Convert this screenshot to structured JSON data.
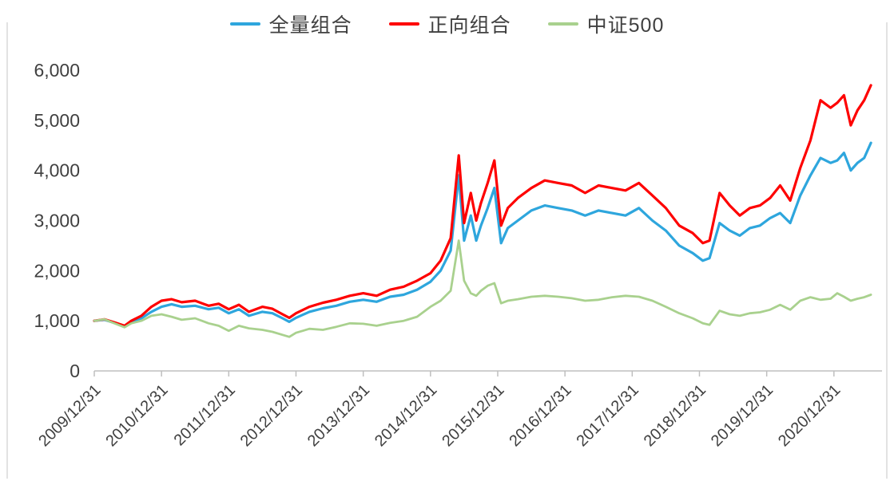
{
  "chart_data": {
    "type": "line",
    "title": "",
    "xlabel": "",
    "ylabel": "",
    "legend_position": "top",
    "grid": false,
    "background": "#ffffff",
    "axis_color": "#bfbfbf",
    "border_color": "#d9d9d9",
    "label_color": "#404040",
    "ylim": [
      0,
      6000
    ],
    "xlim": [
      2010.0,
      2021.62
    ],
    "y_ticks": [
      0,
      1000,
      2000,
      3000,
      4000,
      5000,
      6000
    ],
    "y_tick_labels": [
      "0",
      "1,000",
      "2,000",
      "3,000",
      "4,000",
      "5,000",
      "6,000"
    ],
    "x_tick_positions": [
      2010,
      2011,
      2012,
      2013,
      2014,
      2015,
      2016,
      2017,
      2018,
      2019,
      2020,
      2021
    ],
    "x_tick_labels": [
      "2009/12/31",
      "2010/12/31",
      "2011/12/31",
      "2012/12/31",
      "2013/12/31",
      "2014/12/31",
      "2015/12/31",
      "2016/12/31",
      "2017/12/31",
      "2018/12/31",
      "2019/12/31",
      "2020/12/31"
    ],
    "x_unit": "year fraction (2010.0 = 2009/12/31)",
    "x": [
      2010.0,
      2010.15,
      2010.3,
      2010.45,
      2010.55,
      2010.7,
      2010.85,
      2011.0,
      2011.15,
      2011.3,
      2011.5,
      2011.7,
      2011.85,
      2012.0,
      2012.15,
      2012.3,
      2012.5,
      2012.65,
      2012.8,
      2012.9,
      2013.0,
      2013.2,
      2013.4,
      2013.6,
      2013.8,
      2014.0,
      2014.2,
      2014.4,
      2014.6,
      2014.8,
      2015.0,
      2015.15,
      2015.3,
      2015.42,
      2015.5,
      2015.6,
      2015.68,
      2015.75,
      2015.85,
      2015.95,
      2016.05,
      2016.15,
      2016.3,
      2016.5,
      2016.7,
      2016.9,
      2017.1,
      2017.3,
      2017.5,
      2017.7,
      2017.9,
      2018.1,
      2018.3,
      2018.5,
      2018.7,
      2018.9,
      2019.05,
      2019.15,
      2019.3,
      2019.45,
      2019.6,
      2019.75,
      2019.9,
      2020.05,
      2020.2,
      2020.35,
      2020.5,
      2020.65,
      2020.8,
      2020.95,
      2021.05,
      2021.15,
      2021.25,
      2021.35,
      2021.45,
      2021.55
    ],
    "series": [
      {
        "id": "full-portfolio",
        "name": "全量组合",
        "color": "#2ea6dd",
        "line_width": 3.2,
        "values": [
          1000,
          1020,
          960,
          900,
          980,
          1050,
          1180,
          1280,
          1330,
          1280,
          1300,
          1230,
          1260,
          1150,
          1230,
          1100,
          1180,
          1150,
          1050,
          980,
          1060,
          1180,
          1250,
          1300,
          1380,
          1420,
          1380,
          1480,
          1520,
          1620,
          1780,
          2000,
          2400,
          3900,
          2600,
          3100,
          2600,
          2900,
          3250,
          3650,
          2550,
          2850,
          3000,
          3200,
          3300,
          3250,
          3200,
          3100,
          3200,
          3150,
          3100,
          3250,
          3000,
          2800,
          2500,
          2350,
          2200,
          2250,
          2950,
          2800,
          2700,
          2850,
          2900,
          3050,
          3150,
          2950,
          3500,
          3900,
          4250,
          4150,
          4200,
          4350,
          4000,
          4150,
          4250,
          4550
        ]
      },
      {
        "id": "positive-portfolio",
        "name": "正向组合",
        "color": "#fe0000",
        "line_width": 3.2,
        "values": [
          1000,
          1030,
          970,
          900,
          1000,
          1100,
          1280,
          1400,
          1430,
          1370,
          1400,
          1300,
          1340,
          1230,
          1320,
          1180,
          1280,
          1240,
          1130,
          1060,
          1150,
          1280,
          1360,
          1420,
          1500,
          1550,
          1500,
          1620,
          1680,
          1800,
          1950,
          2200,
          2650,
          4300,
          2950,
          3550,
          3000,
          3350,
          3750,
          4200,
          2900,
          3250,
          3450,
          3650,
          3800,
          3750,
          3700,
          3550,
          3700,
          3650,
          3600,
          3750,
          3500,
          3250,
          2900,
          2750,
          2550,
          2600,
          3550,
          3300,
          3100,
          3250,
          3300,
          3450,
          3700,
          3400,
          4050,
          4600,
          5400,
          5250,
          5350,
          5500,
          4900,
          5200,
          5400,
          5700
        ]
      },
      {
        "id": "csi500",
        "name": "中证500",
        "color": "#a9d18e",
        "line_width": 2.8,
        "values": [
          1000,
          1030,
          950,
          870,
          950,
          1000,
          1100,
          1130,
          1080,
          1020,
          1050,
          950,
          900,
          800,
          900,
          850,
          820,
          780,
          720,
          680,
          760,
          840,
          820,
          880,
          950,
          940,
          900,
          960,
          1000,
          1080,
          1280,
          1400,
          1600,
          2600,
          1800,
          1550,
          1500,
          1600,
          1700,
          1750,
          1350,
          1400,
          1430,
          1480,
          1500,
          1480,
          1450,
          1400,
          1420,
          1470,
          1500,
          1480,
          1400,
          1280,
          1150,
          1050,
          950,
          920,
          1200,
          1130,
          1100,
          1150,
          1170,
          1220,
          1320,
          1220,
          1400,
          1470,
          1420,
          1440,
          1550,
          1480,
          1400,
          1440,
          1470,
          1520
        ]
      }
    ]
  }
}
